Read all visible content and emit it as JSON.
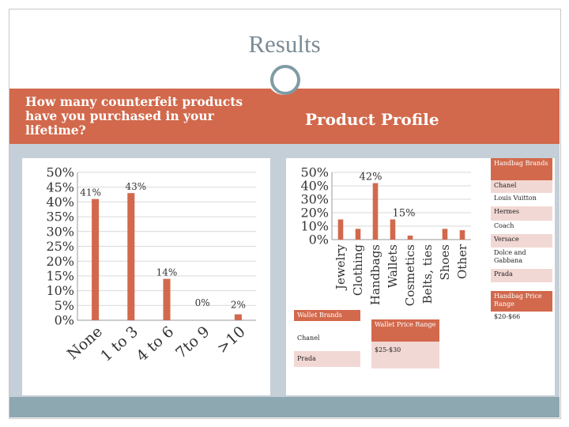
{
  "slide": {
    "title": "Results",
    "left_heading": "How many counterfeit products have you purchased in your lifetime?",
    "right_heading": "Product Profile",
    "colors": {
      "accent": "#d2694c",
      "band": "#d2694c",
      "bg": "#c5cfd8",
      "footer": "#8ea8b1",
      "bar": "#d2694c",
      "light": "#f2d8d4"
    }
  },
  "chart_data": [
    {
      "type": "bar",
      "title": "",
      "categories": [
        "None",
        "1 to 3",
        "4 to 6",
        "7to 9",
        ">10"
      ],
      "values": [
        41,
        43,
        14,
        0,
        2
      ],
      "data_labels": [
        "41%",
        "43%",
        "14%",
        "0%",
        "2%"
      ],
      "ylim": [
        0,
        50
      ],
      "yticks": [
        "0%",
        "5%",
        "10%",
        "15%",
        "20%",
        "25%",
        "30%",
        "35%",
        "40%",
        "45%",
        "50%"
      ],
      "grid": true
    },
    {
      "type": "bar",
      "title": "",
      "categories": [
        "Jewelry",
        "Clothing",
        "Handbags",
        "Wallets",
        "Cosmetics",
        "Belts, ties",
        "Shoes",
        "Other"
      ],
      "values": [
        15,
        8,
        42,
        15,
        3,
        0,
        8,
        7
      ],
      "data_labels": [
        "",
        "",
        "42%",
        "15%",
        "",
        "",
        "",
        ""
      ],
      "ylim": [
        0,
        50
      ],
      "yticks": [
        "0%",
        "10%",
        "20%",
        "30%",
        "40%",
        "50%"
      ],
      "grid": true
    }
  ],
  "handbag_list": {
    "header": "Handbag Brands",
    "items": [
      "Chanel",
      "Louis Vuitton",
      "Hermes",
      "Coach",
      "Versace",
      "Dolce and Gabbana",
      "Prada"
    ]
  },
  "handbag_price": {
    "header": "Handbag Price Range",
    "value": "$20-$66"
  },
  "wallet_list": {
    "header": "Wallet Brands",
    "items": [
      "Chanel",
      "Prada"
    ]
  },
  "wallet_price": {
    "header": "Wallet Price Range",
    "value": "$25-$30"
  }
}
